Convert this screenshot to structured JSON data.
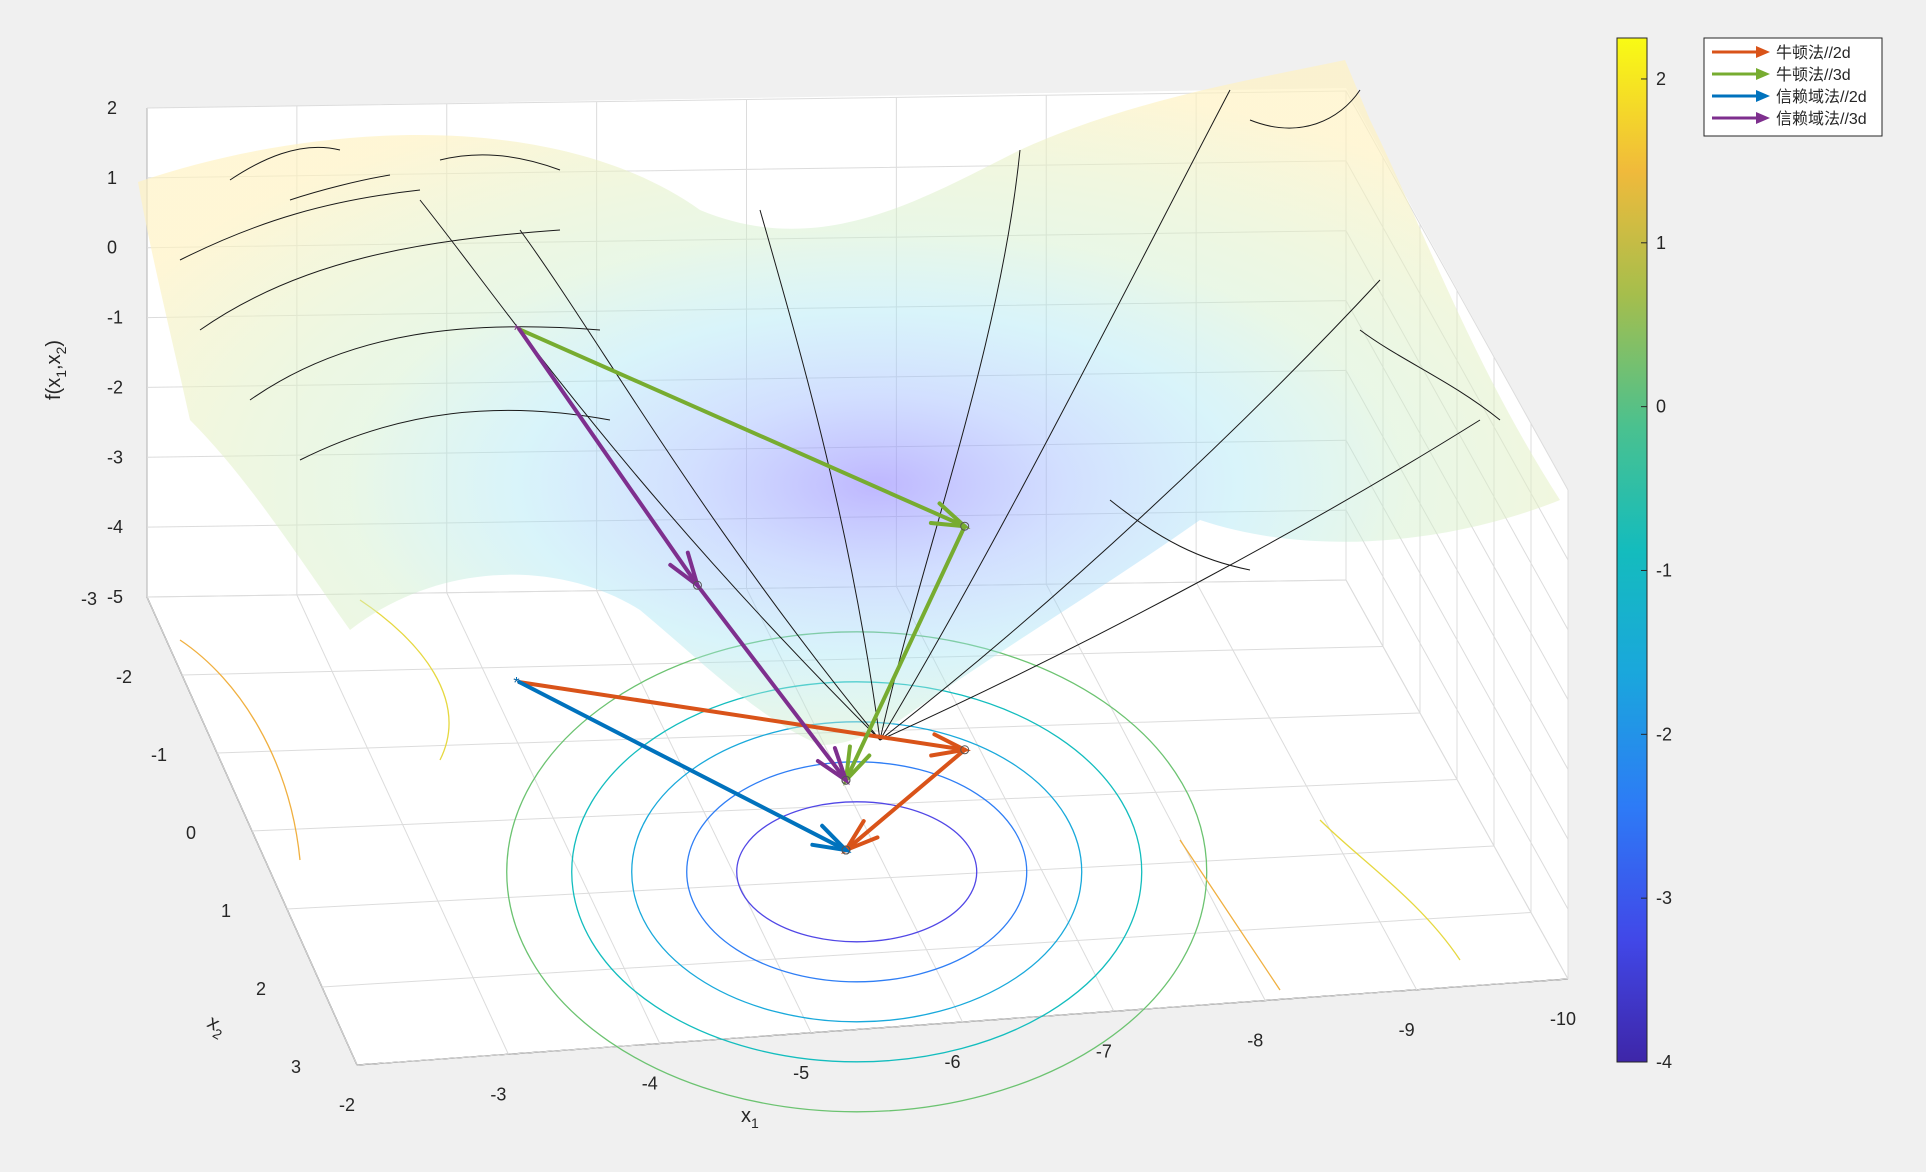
{
  "chart_data": {
    "type": "surface3d",
    "title": "",
    "axes": {
      "x": {
        "label": "x",
        "sub": "1",
        "ticks": [
          -2,
          -3,
          -4,
          -5,
          -6,
          -7,
          -8,
          -9,
          -10
        ],
        "range": [
          -2,
          -10
        ]
      },
      "y": {
        "label": "x",
        "sub": "2",
        "ticks": [
          -3,
          -2,
          -1,
          0,
          1,
          2,
          3
        ],
        "range": [
          -3,
          3
        ]
      },
      "z": {
        "label_parts": [
          "f(x",
          "1",
          ",x",
          "2",
          ")"
        ],
        "ticks": [
          2,
          1,
          0,
          -1,
          -2,
          -3,
          -4,
          -5
        ],
        "range": [
          -5,
          2
        ]
      }
    },
    "colorbar": {
      "ticks": [
        2,
        1,
        0,
        -1,
        -2,
        -3,
        -4
      ],
      "range": [
        -4,
        2.25
      ],
      "colormap": "parula"
    },
    "grid": true,
    "legend": {
      "placement": "top-right",
      "entries": [
        {
          "label": "牛顿法//2d",
          "color": "#d95319"
        },
        {
          "label": "牛顿法//3d",
          "color": "#77ac30"
        },
        {
          "label": "信赖域法//2d",
          "color": "#0072bd"
        },
        {
          "label": "信赖域法//3d",
          "color": "#7e2f8e"
        }
      ]
    },
    "series": [
      {
        "name": "牛顿法//2d",
        "color": "#d95319",
        "points": [
          [
            -4.2,
            -1.8
          ],
          [
            -6.9,
            -0.7
          ],
          [
            -5.8,
            0.6
          ]
        ]
      },
      {
        "name": "牛顿法//3d",
        "color": "#77ac30",
        "points": [
          [
            -4.2,
            -1.8,
            0.05
          ],
          [
            -6.9,
            -0.7,
            -1.8
          ],
          [
            -5.8,
            0.6,
            -4.0
          ]
        ]
      },
      {
        "name": "信赖域法//2d",
        "color": "#0072bd",
        "points": [
          [
            -4.2,
            -1.8
          ],
          [
            -5.8,
            0.6
          ]
        ]
      },
      {
        "name": "信赖域法//3d",
        "color": "#7e2f8e",
        "points": [
          [
            -4.2,
            -1.8,
            0.05
          ],
          [
            -5.1,
            -0.6,
            -2.4
          ],
          [
            -5.8,
            0.6,
            -4.0
          ]
        ]
      }
    ]
  }
}
